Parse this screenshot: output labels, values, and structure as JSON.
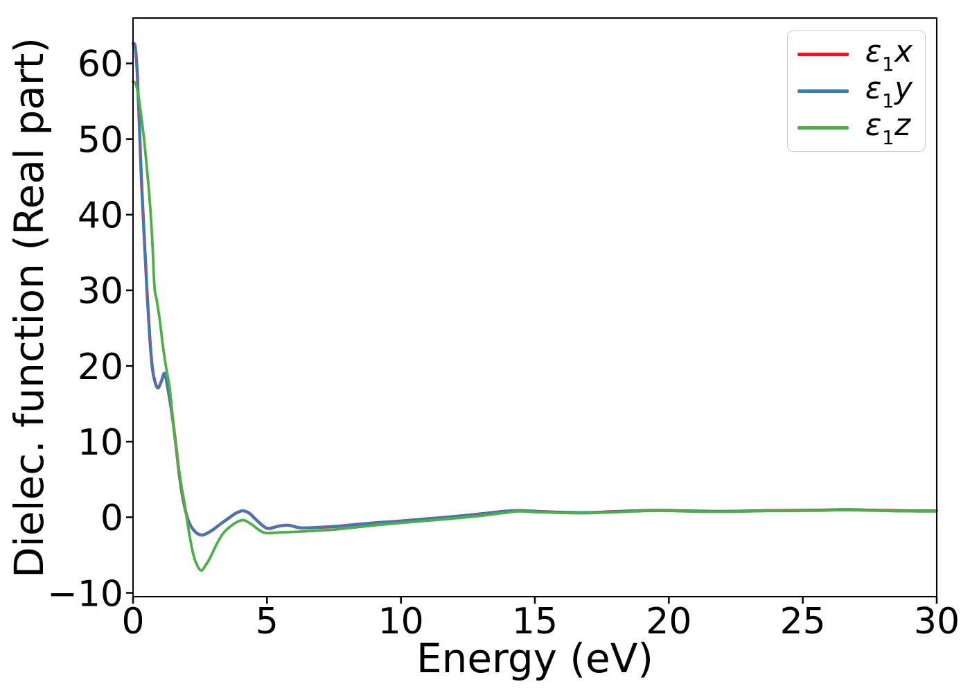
{
  "figure": {
    "background": "#ffffff",
    "text_color": "#000000",
    "spine_color": "#000000",
    "legend_border_color": "#cccccc"
  },
  "chart_data": {
    "type": "line",
    "title": "",
    "xlabel": "Energy (eV)",
    "ylabel": "Dielec. function (Real part)",
    "xlim": [
      0,
      30
    ],
    "ylim": [
      -10.5,
      66
    ],
    "xticks": [
      0,
      5,
      10,
      15,
      20,
      25,
      30
    ],
    "yticks": [
      -10,
      0,
      10,
      20,
      30,
      40,
      50,
      60
    ],
    "grid": false,
    "legend": {
      "position": "upper right",
      "entries": [
        {
          "eps": "ε",
          "sub": "1",
          "var": "x"
        },
        {
          "eps": "ε",
          "sub": "1",
          "var": "y"
        },
        {
          "eps": "ε",
          "sub": "1",
          "var": "z"
        }
      ]
    },
    "series": [
      {
        "id": "e1x",
        "label": "ε1x",
        "color": "#e41a1c",
        "linewidth": 4.4,
        "note": "hidden beneath e1y (identical values)",
        "points": [
          [
            0,
            62.6
          ],
          [
            0.08,
            62.2
          ],
          [
            0.16,
            58.5
          ],
          [
            0.24,
            51.5
          ],
          [
            0.32,
            44.0
          ],
          [
            0.42,
            37.0
          ],
          [
            0.52,
            30.0
          ],
          [
            0.62,
            24.0
          ],
          [
            0.72,
            19.8
          ],
          [
            0.82,
            17.9
          ],
          [
            0.93,
            17.1
          ],
          [
            1.05,
            17.9
          ],
          [
            1.18,
            19.0
          ],
          [
            1.3,
            17.0
          ],
          [
            1.45,
            13.8
          ],
          [
            1.6,
            9.5
          ],
          [
            1.75,
            5.0
          ],
          [
            1.9,
            1.8
          ],
          [
            2.05,
            -0.3
          ],
          [
            2.2,
            -1.4
          ],
          [
            2.4,
            -2.15
          ],
          [
            2.6,
            -2.35
          ],
          [
            2.8,
            -2.05
          ],
          [
            3.0,
            -1.6
          ],
          [
            3.3,
            -0.8
          ],
          [
            3.6,
            -0.05
          ],
          [
            3.85,
            0.55
          ],
          [
            4.1,
            0.85
          ],
          [
            4.35,
            0.5
          ],
          [
            4.6,
            -0.35
          ],
          [
            5.0,
            -1.45
          ],
          [
            5.4,
            -1.2
          ],
          [
            5.8,
            -1.05
          ],
          [
            6.25,
            -1.4
          ],
          [
            6.9,
            -1.35
          ],
          [
            7.6,
            -1.2
          ],
          [
            8.2,
            -1.0
          ],
          [
            9.0,
            -0.75
          ],
          [
            10.0,
            -0.5
          ],
          [
            11.0,
            -0.2
          ],
          [
            12.0,
            0.1
          ],
          [
            13.0,
            0.45
          ],
          [
            13.9,
            0.8
          ],
          [
            14.4,
            0.88
          ],
          [
            15.1,
            0.78
          ],
          [
            16.0,
            0.66
          ],
          [
            16.9,
            0.6
          ],
          [
            17.8,
            0.72
          ],
          [
            18.7,
            0.85
          ],
          [
            19.6,
            0.92
          ],
          [
            20.6,
            0.85
          ],
          [
            21.6,
            0.78
          ],
          [
            22.6,
            0.8
          ],
          [
            23.6,
            0.88
          ],
          [
            24.6,
            0.9
          ],
          [
            25.6,
            0.93
          ],
          [
            26.6,
            1.0
          ],
          [
            27.6,
            0.93
          ],
          [
            28.6,
            0.86
          ],
          [
            29.3,
            0.84
          ],
          [
            30,
            0.84
          ]
        ]
      },
      {
        "id": "e1y",
        "label": "ε1y",
        "color": "#377eb8",
        "linewidth": 3.6,
        "points": [
          [
            0,
            62.6
          ],
          [
            0.08,
            62.2
          ],
          [
            0.16,
            58.5
          ],
          [
            0.24,
            51.5
          ],
          [
            0.32,
            44.0
          ],
          [
            0.42,
            37.0
          ],
          [
            0.52,
            30.0
          ],
          [
            0.62,
            24.0
          ],
          [
            0.72,
            19.8
          ],
          [
            0.82,
            17.9
          ],
          [
            0.93,
            17.1
          ],
          [
            1.05,
            17.9
          ],
          [
            1.18,
            19.0
          ],
          [
            1.3,
            17.0
          ],
          [
            1.45,
            13.8
          ],
          [
            1.6,
            9.5
          ],
          [
            1.75,
            5.0
          ],
          [
            1.9,
            1.8
          ],
          [
            2.05,
            -0.3
          ],
          [
            2.2,
            -1.4
          ],
          [
            2.4,
            -2.15
          ],
          [
            2.6,
            -2.35
          ],
          [
            2.8,
            -2.05
          ],
          [
            3.0,
            -1.6
          ],
          [
            3.3,
            -0.8
          ],
          [
            3.6,
            -0.05
          ],
          [
            3.85,
            0.55
          ],
          [
            4.1,
            0.85
          ],
          [
            4.35,
            0.5
          ],
          [
            4.6,
            -0.35
          ],
          [
            5.0,
            -1.45
          ],
          [
            5.4,
            -1.2
          ],
          [
            5.8,
            -1.05
          ],
          [
            6.25,
            -1.4
          ],
          [
            6.9,
            -1.35
          ],
          [
            7.6,
            -1.2
          ],
          [
            8.2,
            -1.0
          ],
          [
            9.0,
            -0.75
          ],
          [
            10.0,
            -0.5
          ],
          [
            11.0,
            -0.2
          ],
          [
            12.0,
            0.1
          ],
          [
            13.0,
            0.45
          ],
          [
            13.9,
            0.8
          ],
          [
            14.4,
            0.88
          ],
          [
            15.1,
            0.78
          ],
          [
            16.0,
            0.66
          ],
          [
            16.9,
            0.6
          ],
          [
            17.8,
            0.72
          ],
          [
            18.7,
            0.85
          ],
          [
            19.6,
            0.92
          ],
          [
            20.6,
            0.85
          ],
          [
            21.6,
            0.78
          ],
          [
            22.6,
            0.8
          ],
          [
            23.6,
            0.88
          ],
          [
            24.6,
            0.9
          ],
          [
            25.6,
            0.93
          ],
          [
            26.6,
            1.0
          ],
          [
            27.6,
            0.93
          ],
          [
            28.6,
            0.86
          ],
          [
            29.3,
            0.84
          ],
          [
            30,
            0.84
          ]
        ]
      },
      {
        "id": "e1z",
        "label": "ε1z",
        "color": "#4daf4a",
        "linewidth": 3.8,
        "points": [
          [
            0,
            57.6
          ],
          [
            0.1,
            57.3
          ],
          [
            0.2,
            55.8
          ],
          [
            0.3,
            53.2
          ],
          [
            0.41,
            50.0
          ],
          [
            0.52,
            46.0
          ],
          [
            0.62,
            42.0
          ],
          [
            0.72,
            36.5
          ],
          [
            0.8,
            30.5
          ],
          [
            0.88,
            28.8
          ],
          [
            1.0,
            26.0
          ],
          [
            1.12,
            22.5
          ],
          [
            1.25,
            19.5
          ],
          [
            1.37,
            17.0
          ],
          [
            1.5,
            12.5
          ],
          [
            1.65,
            8.0
          ],
          [
            1.8,
            4.3
          ],
          [
            1.95,
            1.2
          ],
          [
            2.1,
            -2.2
          ],
          [
            2.25,
            -4.9
          ],
          [
            2.4,
            -6.4
          ],
          [
            2.55,
            -7.05
          ],
          [
            2.7,
            -6.4
          ],
          [
            2.9,
            -5.2
          ],
          [
            3.1,
            -3.7
          ],
          [
            3.35,
            -2.2
          ],
          [
            3.6,
            -1.3
          ],
          [
            3.9,
            -0.6
          ],
          [
            4.15,
            -0.4
          ],
          [
            4.45,
            -1.0
          ],
          [
            4.75,
            -1.8
          ],
          [
            5.0,
            -2.1
          ],
          [
            5.5,
            -2.0
          ],
          [
            6.2,
            -1.9
          ],
          [
            7.0,
            -1.75
          ],
          [
            7.6,
            -1.6
          ],
          [
            8.4,
            -1.3
          ],
          [
            9.2,
            -1.0
          ],
          [
            10.0,
            -0.75
          ],
          [
            11.0,
            -0.45
          ],
          [
            12.0,
            -0.15
          ],
          [
            13.0,
            0.2
          ],
          [
            13.8,
            0.55
          ],
          [
            14.4,
            0.78
          ],
          [
            15.1,
            0.68
          ],
          [
            16.0,
            0.58
          ],
          [
            16.9,
            0.54
          ],
          [
            17.8,
            0.64
          ],
          [
            18.7,
            0.78
          ],
          [
            19.6,
            0.86
          ],
          [
            20.6,
            0.79
          ],
          [
            21.6,
            0.72
          ],
          [
            22.6,
            0.75
          ],
          [
            23.6,
            0.83
          ],
          [
            24.6,
            0.85
          ],
          [
            25.6,
            0.88
          ],
          [
            26.6,
            0.95
          ],
          [
            27.6,
            0.88
          ],
          [
            28.6,
            0.81
          ],
          [
            29.3,
            0.79
          ],
          [
            30,
            0.79
          ]
        ]
      }
    ]
  }
}
